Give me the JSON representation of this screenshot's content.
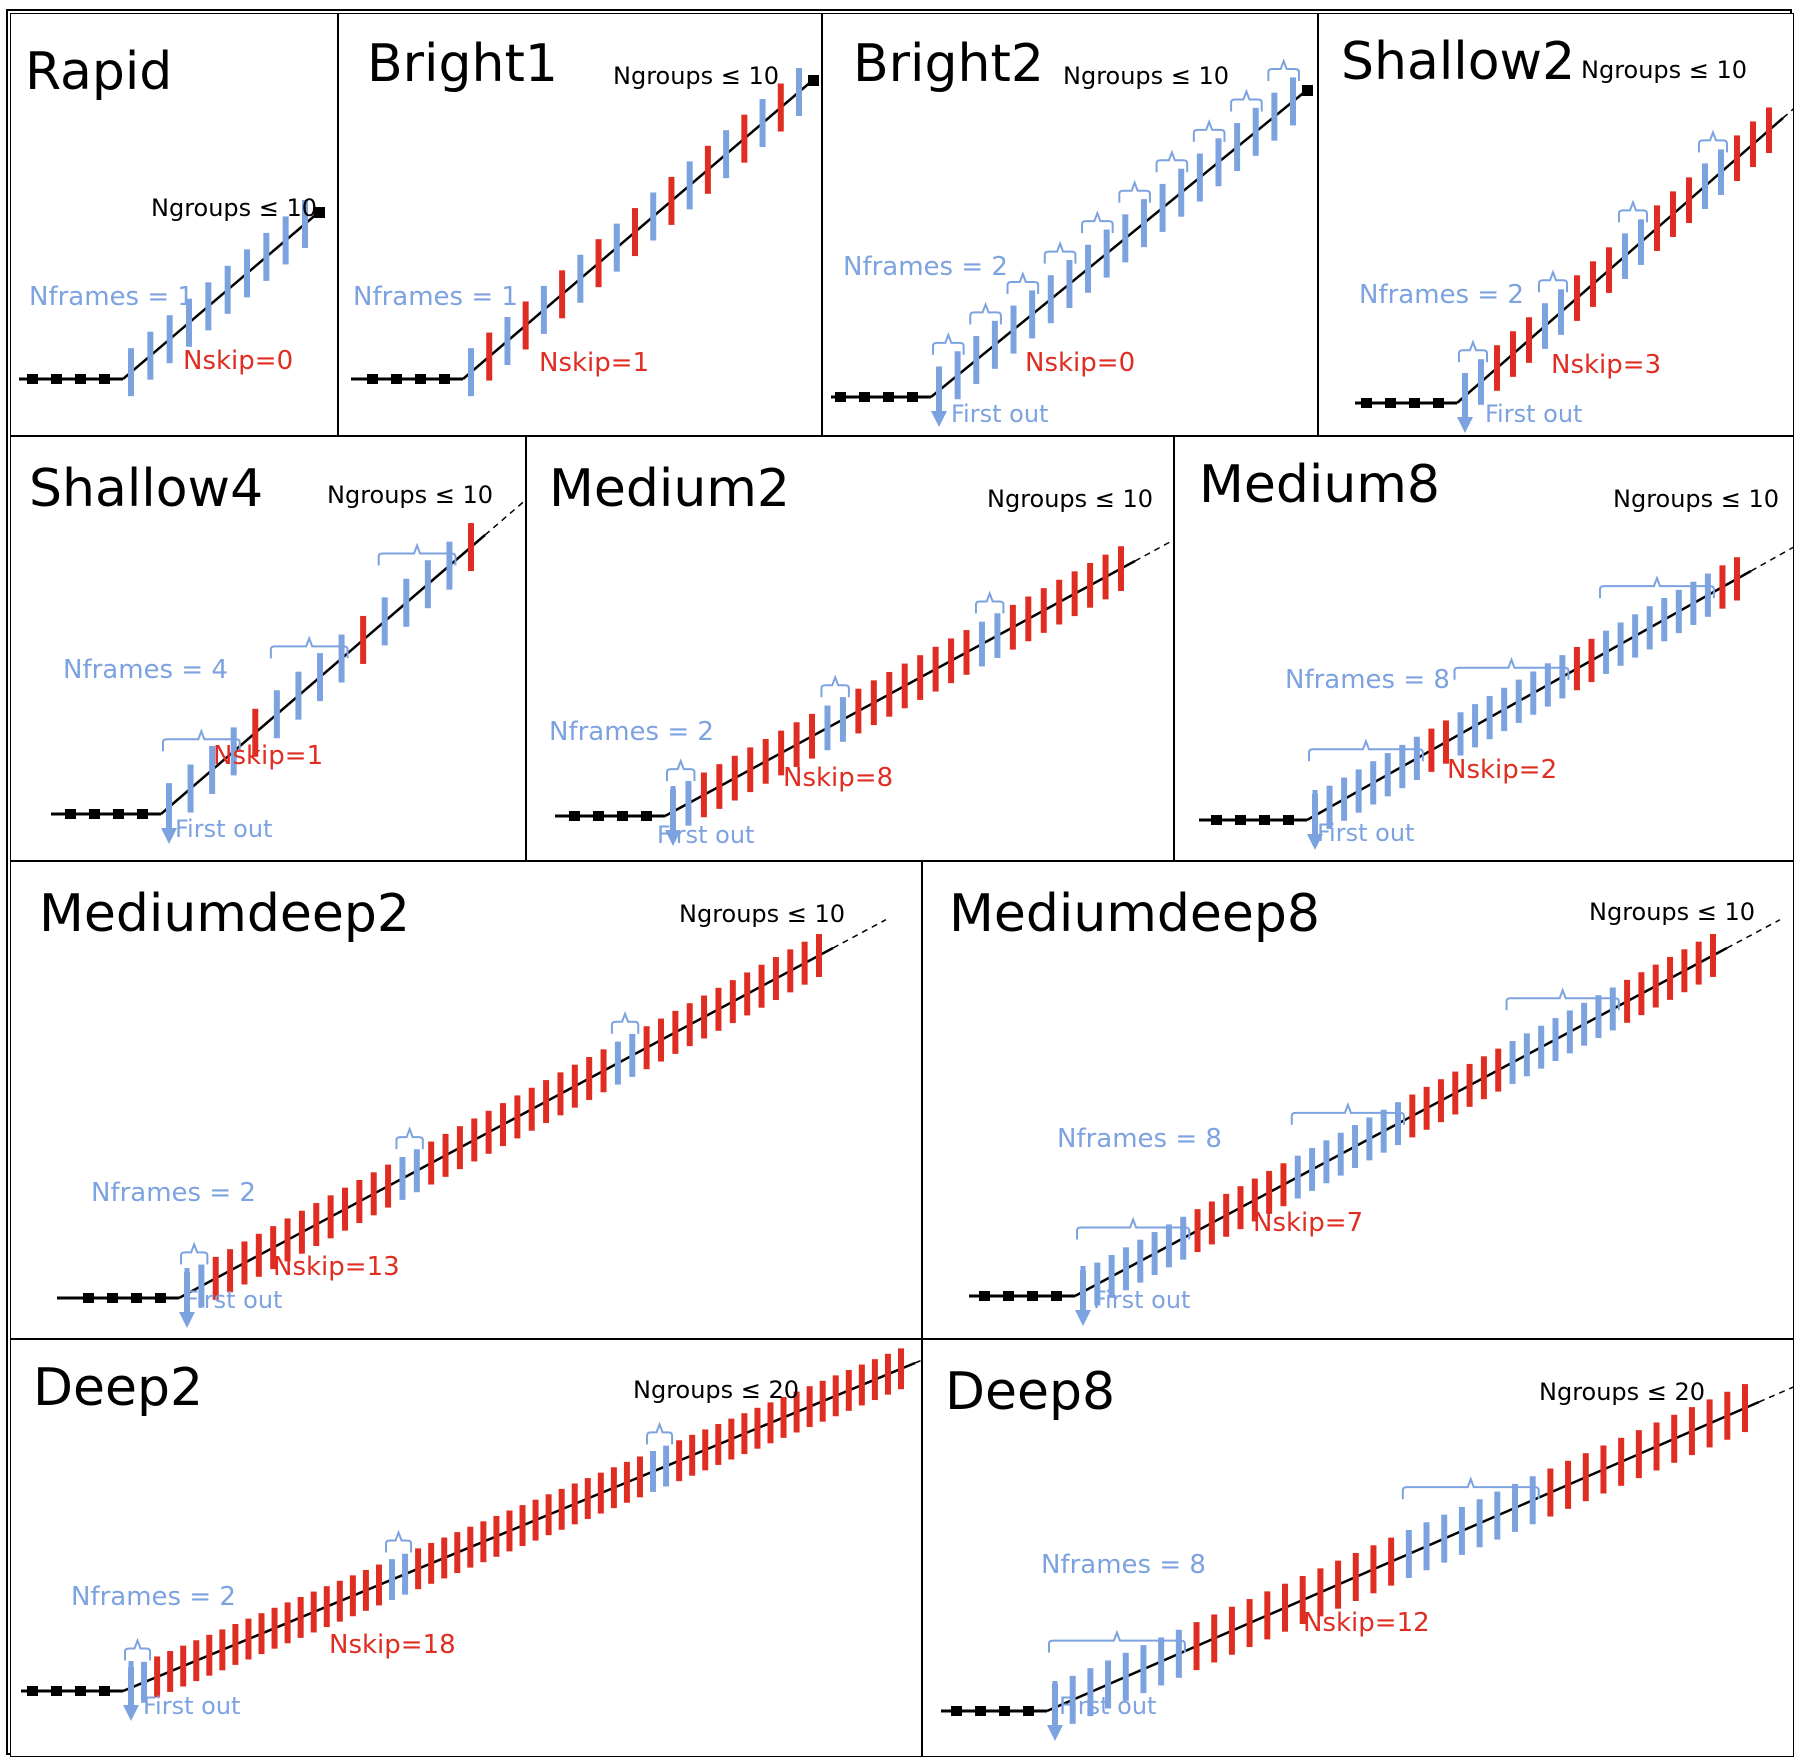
{
  "colors": {
    "kept_frame": "#7da2e0",
    "skipped_frame": "#e02d22",
    "ramp_line": "#000000",
    "reset_marker": "#000000"
  },
  "panels": [
    {
      "name": "Rapid",
      "ngroups": "Ngroups ≤ 10",
      "nframes": "Nframes = 1",
      "nskip": "Nskip=0",
      "first_out": "",
      "frames_per_group": 1,
      "skip": 0,
      "groups_drawn": 10,
      "terminated": true
    },
    {
      "name": "Bright1",
      "ngroups": "Ngroups ≤ 10",
      "nframes": "Nframes = 1",
      "nskip": "Nskip=1",
      "first_out": "",
      "frames_per_group": 1,
      "skip": 1,
      "groups_drawn": 10,
      "terminated": true
    },
    {
      "name": "Bright2",
      "ngroups": "Ngroups ≤ 10",
      "nframes": "Nframes = 2",
      "nskip": "Nskip=0",
      "first_out": "First out",
      "frames_per_group": 2,
      "skip": 0,
      "groups_drawn": 10,
      "terminated": true
    },
    {
      "name": "Shallow2",
      "ngroups": "Ngroups ≤ 10",
      "nframes": "Nframes = 2",
      "nskip": "Nskip=3",
      "first_out": "First out",
      "frames_per_group": 2,
      "skip": 3,
      "groups_drawn": 4,
      "terminated": false
    },
    {
      "name": "Shallow4",
      "ngroups": "Ngroups ≤ 10",
      "nframes": "Nframes = 4",
      "nskip": "Nskip=1",
      "first_out": "First out",
      "frames_per_group": 4,
      "skip": 1,
      "groups_drawn": 3,
      "terminated": false
    },
    {
      "name": "Medium2",
      "ngroups": "Ngroups ≤ 10",
      "nframes": "Nframes = 2",
      "nskip": "Nskip=8",
      "first_out": "First out",
      "frames_per_group": 2,
      "skip": 8,
      "groups_drawn": 3,
      "terminated": false
    },
    {
      "name": "Medium8",
      "ngroups": "Ngroups ≤ 10",
      "nframes": "Nframes = 8",
      "nskip": "Nskip=2",
      "first_out": "First out",
      "frames_per_group": 8,
      "skip": 2,
      "groups_drawn": 3,
      "terminated": false
    },
    {
      "name": "Mediumdeep2",
      "ngroups": "Ngroups ≤ 10",
      "nframes": "Nframes = 2",
      "nskip": "Nskip=13",
      "first_out": "First out",
      "frames_per_group": 2,
      "skip": 13,
      "groups_drawn": 3,
      "terminated": false
    },
    {
      "name": "Mediumdeep8",
      "ngroups": "Ngroups ≤ 10",
      "nframes": "Nframes = 8",
      "nskip": "Nskip=7",
      "first_out": "First out",
      "frames_per_group": 8,
      "skip": 7,
      "groups_drawn": 3,
      "terminated": false
    },
    {
      "name": "Deep2",
      "ngroups": "Ngroups ≤ 20",
      "nframes": "Nframes = 2",
      "nskip": "Nskip=18",
      "first_out": "First out",
      "frames_per_group": 2,
      "skip": 18,
      "groups_drawn": 3,
      "terminated": false
    },
    {
      "name": "Deep8",
      "ngroups": "Ngroups ≤ 20",
      "nframes": "Nframes = 8",
      "nskip": "Nskip=12",
      "first_out": "First out",
      "frames_per_group": 8,
      "skip": 12,
      "groups_drawn": 2,
      "terminated": false
    }
  ]
}
